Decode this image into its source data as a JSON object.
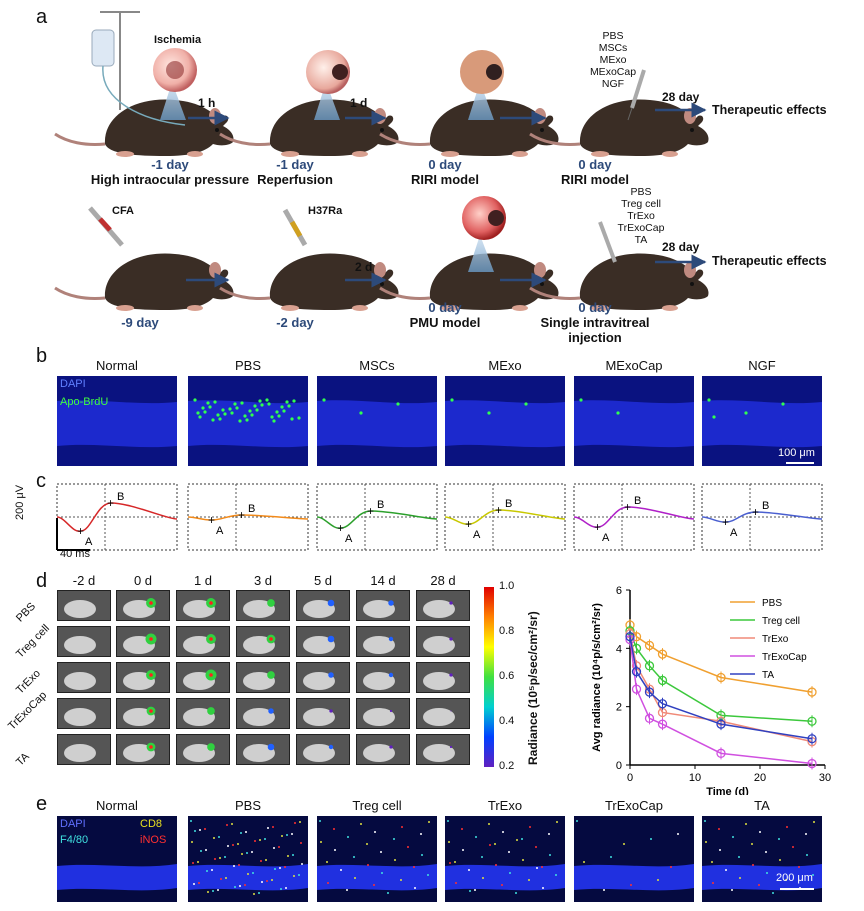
{
  "panel_a": {
    "label": "a",
    "row1": {
      "stages": [
        {
          "day": "-1 day",
          "caption": "High intraocular pressure"
        },
        {
          "day": "-1 day",
          "caption": "Reperfusion"
        },
        {
          "day": "0 day",
          "caption": "RIRI model"
        },
        {
          "day": "0 day",
          "caption": "RIRI model"
        }
      ],
      "annotation_ischemia": "Ischemia",
      "arrow_labels": [
        "1 h",
        "1 d"
      ],
      "treatments": [
        "PBS",
        "MSCs",
        "MExo",
        "MExoCap",
        "NGF"
      ],
      "duration": "28 day",
      "outcome": "Therapeutic effects"
    },
    "row2": {
      "stages": [
        {
          "day": "-9 day",
          "caption": ""
        },
        {
          "day": "-2 day",
          "caption": ""
        },
        {
          "day": "0 day",
          "caption": "PMU model"
        },
        {
          "day": "0 day",
          "caption": "Single intravitreal injection"
        }
      ],
      "syringe_labels": [
        "CFA",
        "H37Ra"
      ],
      "arrow_label": "2 d",
      "treatments": [
        "PBS",
        "Treg cell",
        "TrExo",
        "TrExoCap",
        "TA"
      ],
      "duration": "28 day",
      "outcome": "Therapeutic effects"
    }
  },
  "panel_b": {
    "label": "b",
    "titles": [
      "Normal",
      "PBS",
      "MSCs",
      "MExo",
      "MExoCap",
      "NGF"
    ],
    "legend": [
      "DAPI",
      "Apo-BrdU"
    ],
    "scale": "100 μm"
  },
  "panel_c": {
    "label": "c",
    "peak_labels": [
      "A",
      "B"
    ],
    "scale_y": "200 μV",
    "scale_x": "40 ms",
    "colors": [
      "#d62728",
      "#f28a1a",
      "#2ca02c",
      "#c8c800",
      "#b020c8",
      "#4a5fd0"
    ]
  },
  "panel_d": {
    "label": "d",
    "timepoints": [
      "-2 d",
      "0 d",
      "1 d",
      "3 d",
      "5 d",
      "14 d",
      "28 d"
    ],
    "groups": [
      "PBS",
      "Treg cell",
      "TrExo",
      "TrExoCap",
      "TA"
    ],
    "colorbar_label": "Radiance (10⁵p/sec/cm²/sr)",
    "colorbar_ticks": [
      "1.0",
      "0.8",
      "0.6",
      "0.4",
      "0.2"
    ]
  },
  "chart_data": {
    "type": "line",
    "xlabel": "Time (d)",
    "ylabel": "Avg radiance (10⁴p/s/cm²/sr)",
    "xlim": [
      0,
      30
    ],
    "ylim": [
      0,
      6
    ],
    "xticks": [
      0,
      10,
      20,
      30
    ],
    "yticks": [
      0,
      2,
      4,
      6
    ],
    "legend_position": "top-right",
    "x": [
      0,
      1,
      3,
      5,
      14,
      28
    ],
    "series": [
      {
        "name": "PBS",
        "color": "#f0a030",
        "values": [
          4.8,
          4.4,
          4.1,
          3.8,
          3.0,
          2.5
        ]
      },
      {
        "name": "Treg cell",
        "color": "#3cc83c",
        "values": [
          4.6,
          4.0,
          3.4,
          2.9,
          1.7,
          1.5
        ]
      },
      {
        "name": "TrExo",
        "color": "#f08a78",
        "values": [
          4.5,
          3.4,
          2.6,
          1.8,
          1.5,
          0.8
        ]
      },
      {
        "name": "TrExoCap",
        "color": "#d050e0",
        "values": [
          4.3,
          2.6,
          1.6,
          1.4,
          0.4,
          0.05
        ]
      },
      {
        "name": "TA",
        "color": "#3040c0",
        "values": [
          4.4,
          3.2,
          2.5,
          2.1,
          1.4,
          0.9
        ]
      }
    ]
  },
  "panel_e": {
    "label": "e",
    "titles": [
      "Normal",
      "PBS",
      "Treg cell",
      "TrExo",
      "TrExoCap",
      "TA"
    ],
    "legend": [
      "DAPI",
      "CD8",
      "F4/80",
      "iNOS"
    ],
    "scale": "200 μm"
  }
}
